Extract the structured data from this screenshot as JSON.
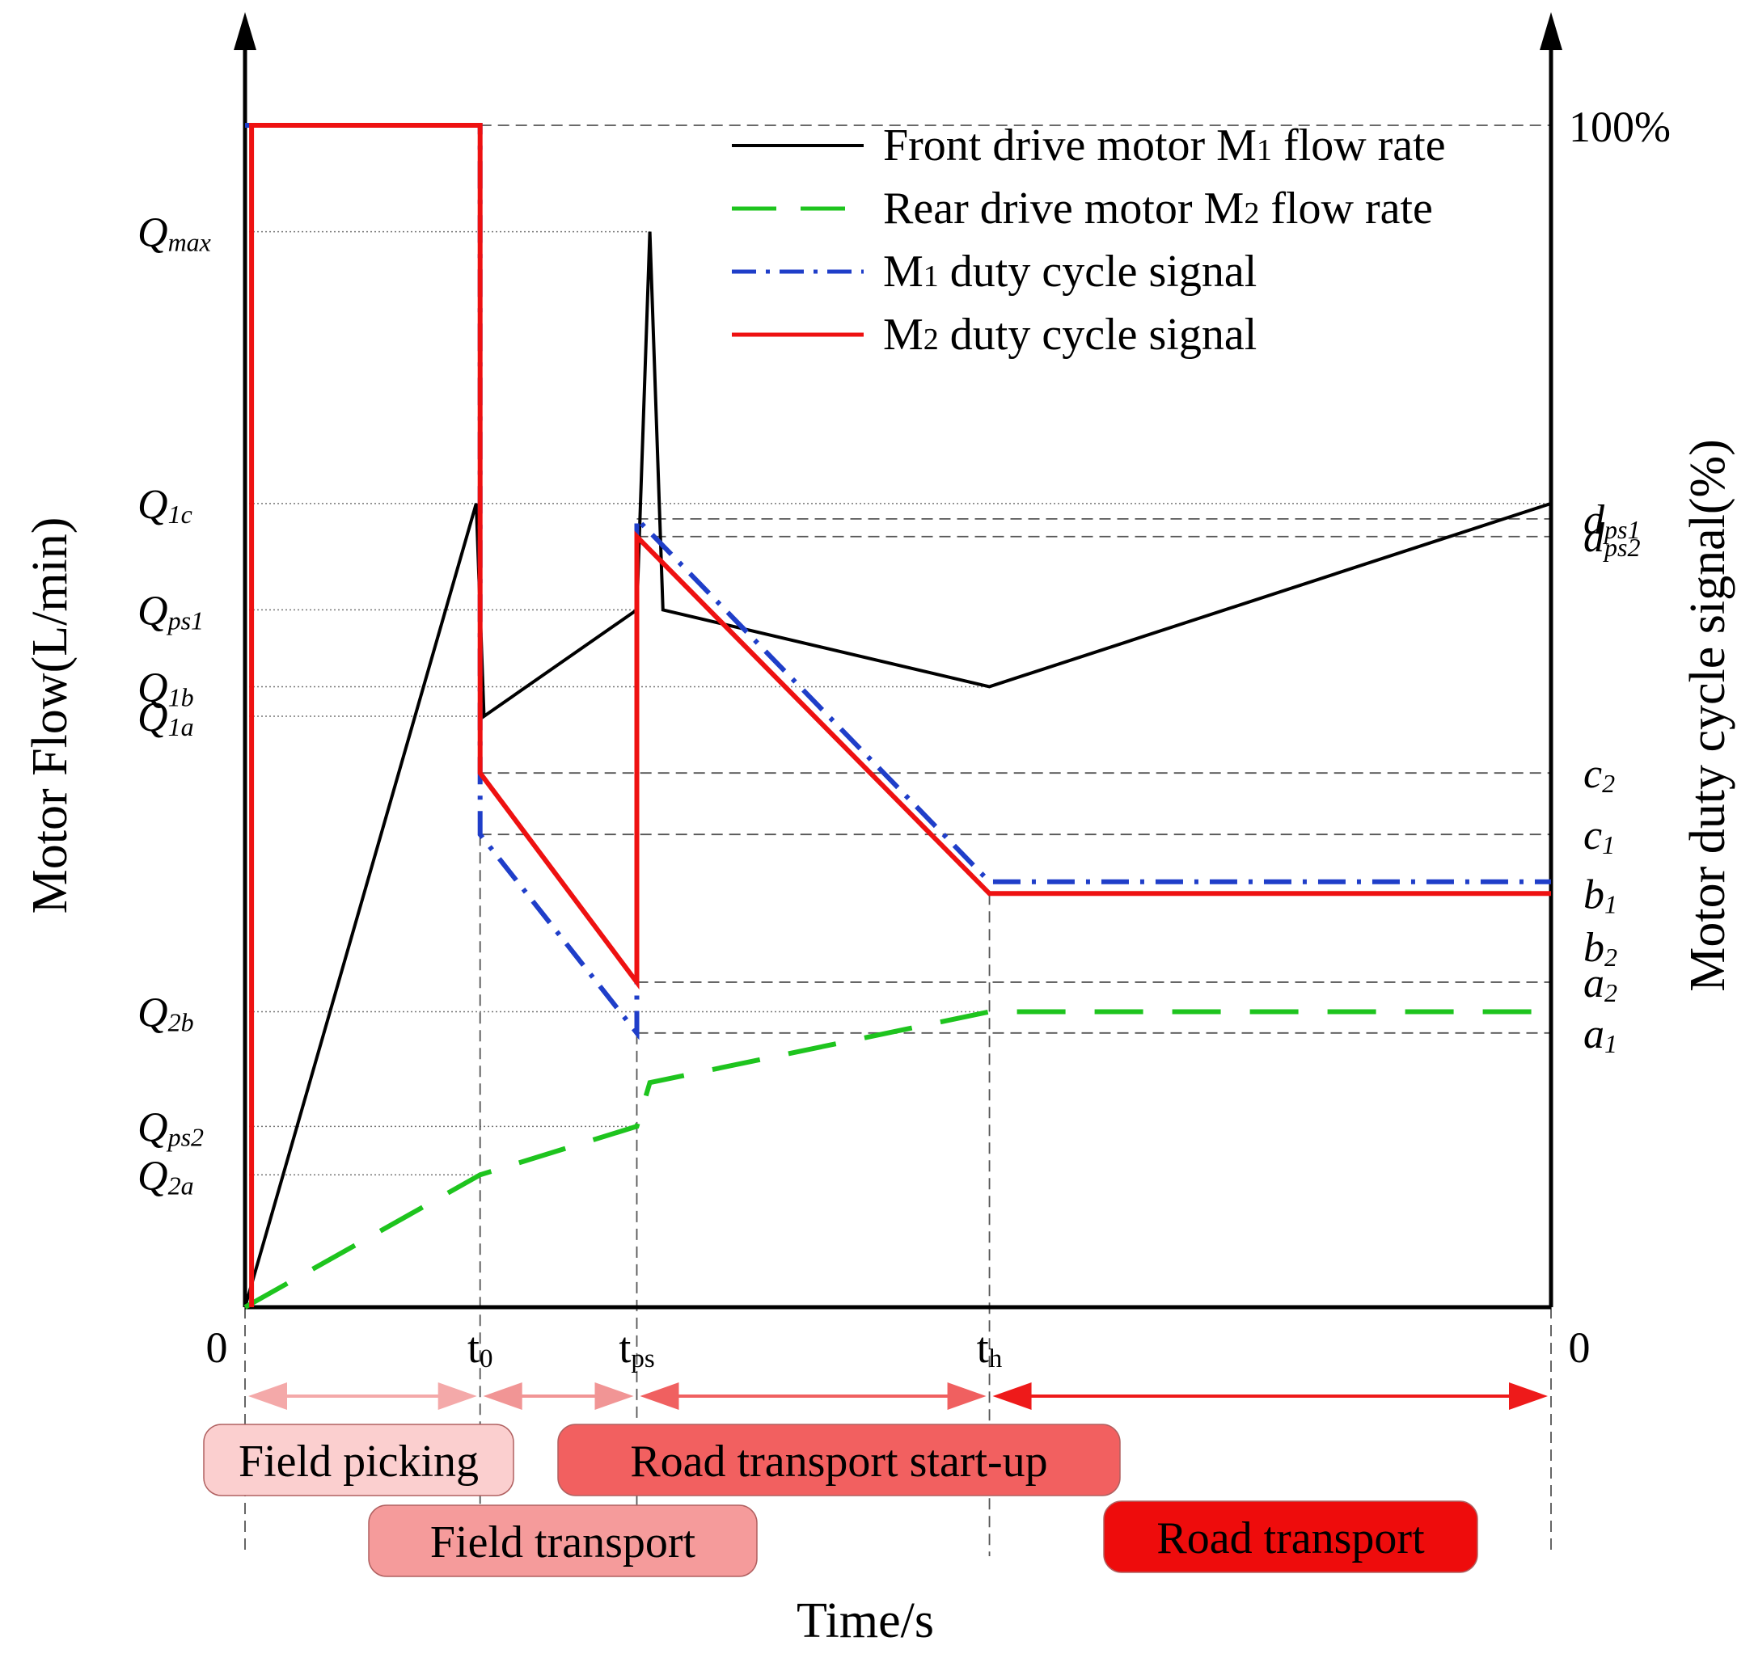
{
  "chart_data": {
    "type": "line",
    "title": "",
    "xlabel": "Time/s",
    "ylabel_left": "Motor Flow(L/min)",
    "ylabel_right": "Motor duty cycle signal(%)",
    "x_ticks": [
      {
        "key": "0",
        "main": "0",
        "sub": "",
        "t": 0
      },
      {
        "key": "t0",
        "main": "t",
        "sub": "0",
        "t": 0.18
      },
      {
        "key": "tps",
        "main": "t",
        "sub": "ps",
        "t": 0.3
      },
      {
        "key": "th",
        "main": "t",
        "sub": "h",
        "t": 0.57
      },
      {
        "key": "end",
        "main": "0",
        "sub": "",
        "t": 1.0
      }
    ],
    "left_ticks": [
      {
        "key": "Qmax",
        "main": "Q",
        "sub": "max",
        "v": 0.91
      },
      {
        "key": "Q1c",
        "main": "Q",
        "sub": "1c",
        "v": 0.68
      },
      {
        "key": "Qps1",
        "main": "Q",
        "sub": "ps1",
        "v": 0.59
      },
      {
        "key": "Q1b",
        "main": "Q",
        "sub": "1b",
        "v": 0.525
      },
      {
        "key": "Q1a",
        "main": "Q",
        "sub": "1a",
        "v": 0.5
      },
      {
        "key": "Q2b",
        "main": "Q",
        "sub": "2b",
        "v": 0.25
      },
      {
        "key": "Qps2",
        "main": "Q",
        "sub": "ps2",
        "v": 0.153
      },
      {
        "key": "Q2a",
        "main": "Q",
        "sub": "2a",
        "v": 0.112
      }
    ],
    "right_ticks": [
      {
        "key": "100",
        "label": "100%",
        "v": 1.0
      },
      {
        "key": "dps1",
        "main": "d",
        "sub": "ps1",
        "v": 0.667
      },
      {
        "key": "dps2",
        "main": "d",
        "sub": "ps2",
        "v": 0.652
      },
      {
        "key": "c2",
        "main": "c",
        "sub": "2",
        "v": 0.452
      },
      {
        "key": "c1",
        "main": "c",
        "sub": "1",
        "v": 0.4
      },
      {
        "key": "b1",
        "main": "b",
        "sub": "1",
        "v": 0.35
      },
      {
        "key": "b2",
        "main": "b",
        "sub": "2",
        "v": 0.305
      },
      {
        "key": "a2",
        "main": "a",
        "sub": "2",
        "v": 0.275
      },
      {
        "key": "a1",
        "main": "a",
        "sub": "1",
        "v": 0.232
      }
    ],
    "series": [
      {
        "name": "Front drive motor M1 flow rate",
        "legend": {
          "pre": "Front drive motor M",
          "sub": "1",
          "post": " flow rate"
        },
        "color": "#000000",
        "dash": "solid",
        "points": [
          [
            0,
            0
          ],
          [
            0.177,
            0.68
          ],
          [
            0.183,
            0.5
          ],
          [
            0.3,
            0.59
          ],
          [
            0.31,
            0.91
          ],
          [
            0.32,
            0.59
          ],
          [
            0.57,
            0.525
          ],
          [
            1.0,
            0.68
          ]
        ]
      },
      {
        "name": "Rear drive motor M2 flow rate",
        "legend": {
          "pre": "Rear drive motor M",
          "sub": "2",
          "post": " flow rate"
        },
        "color": "#1ec41e",
        "dash": "long-dash",
        "points": [
          [
            0,
            0
          ],
          [
            0.18,
            0.112
          ],
          [
            0.3,
            0.153
          ],
          [
            0.31,
            0.19
          ],
          [
            0.57,
            0.25
          ],
          [
            1.0,
            0.25
          ]
        ]
      },
      {
        "name": "M1 duty cycle signal",
        "legend": {
          "pre": "M",
          "sub": "1",
          "post": " duty cycle signal"
        },
        "color": "#1f3ec9",
        "dash": "dash-dot",
        "points": [
          [
            0,
            1.0
          ],
          [
            0.18,
            1.0
          ],
          [
            0.18,
            0.4
          ],
          [
            0.3,
            0.232
          ],
          [
            0.3,
            0.667
          ],
          [
            0.57,
            0.36
          ],
          [
            1.0,
            0.36
          ]
        ]
      },
      {
        "name": "M2 duty cycle signal",
        "legend": {
          "pre": "M",
          "sub": "2",
          "post": " duty cycle signal"
        },
        "color": "#ee1111",
        "dash": "solid",
        "points": [
          [
            0.005,
            0.0
          ],
          [
            0.005,
            1.0
          ],
          [
            0.18,
            1.0
          ],
          [
            0.18,
            0.452
          ],
          [
            0.3,
            0.275
          ],
          [
            0.3,
            0.652
          ],
          [
            0.57,
            0.35
          ],
          [
            1.0,
            0.35
          ]
        ]
      }
    ],
    "phase_arrows": [
      {
        "from": 0.0,
        "to": 0.18,
        "color": "#f4a9a9"
      },
      {
        "from": 0.18,
        "to": 0.3,
        "color": "#f19595"
      },
      {
        "from": 0.3,
        "to": 0.57,
        "color": "#f06060"
      },
      {
        "from": 0.57,
        "to": 1.0,
        "color": "#ee1a1a"
      }
    ],
    "phases": [
      {
        "label": "Field picking",
        "fill": "#fbcfcf"
      },
      {
        "label": "Field transport",
        "fill": "#f59b9b"
      },
      {
        "label": "Road transport start-up",
        "fill": "#f26060"
      },
      {
        "label": "Road transport",
        "fill": "#ee0c0c"
      }
    ],
    "xlim": [
      0,
      1
    ],
    "ylim": [
      0,
      1
    ],
    "grid": false,
    "legend_position": "top-right"
  }
}
